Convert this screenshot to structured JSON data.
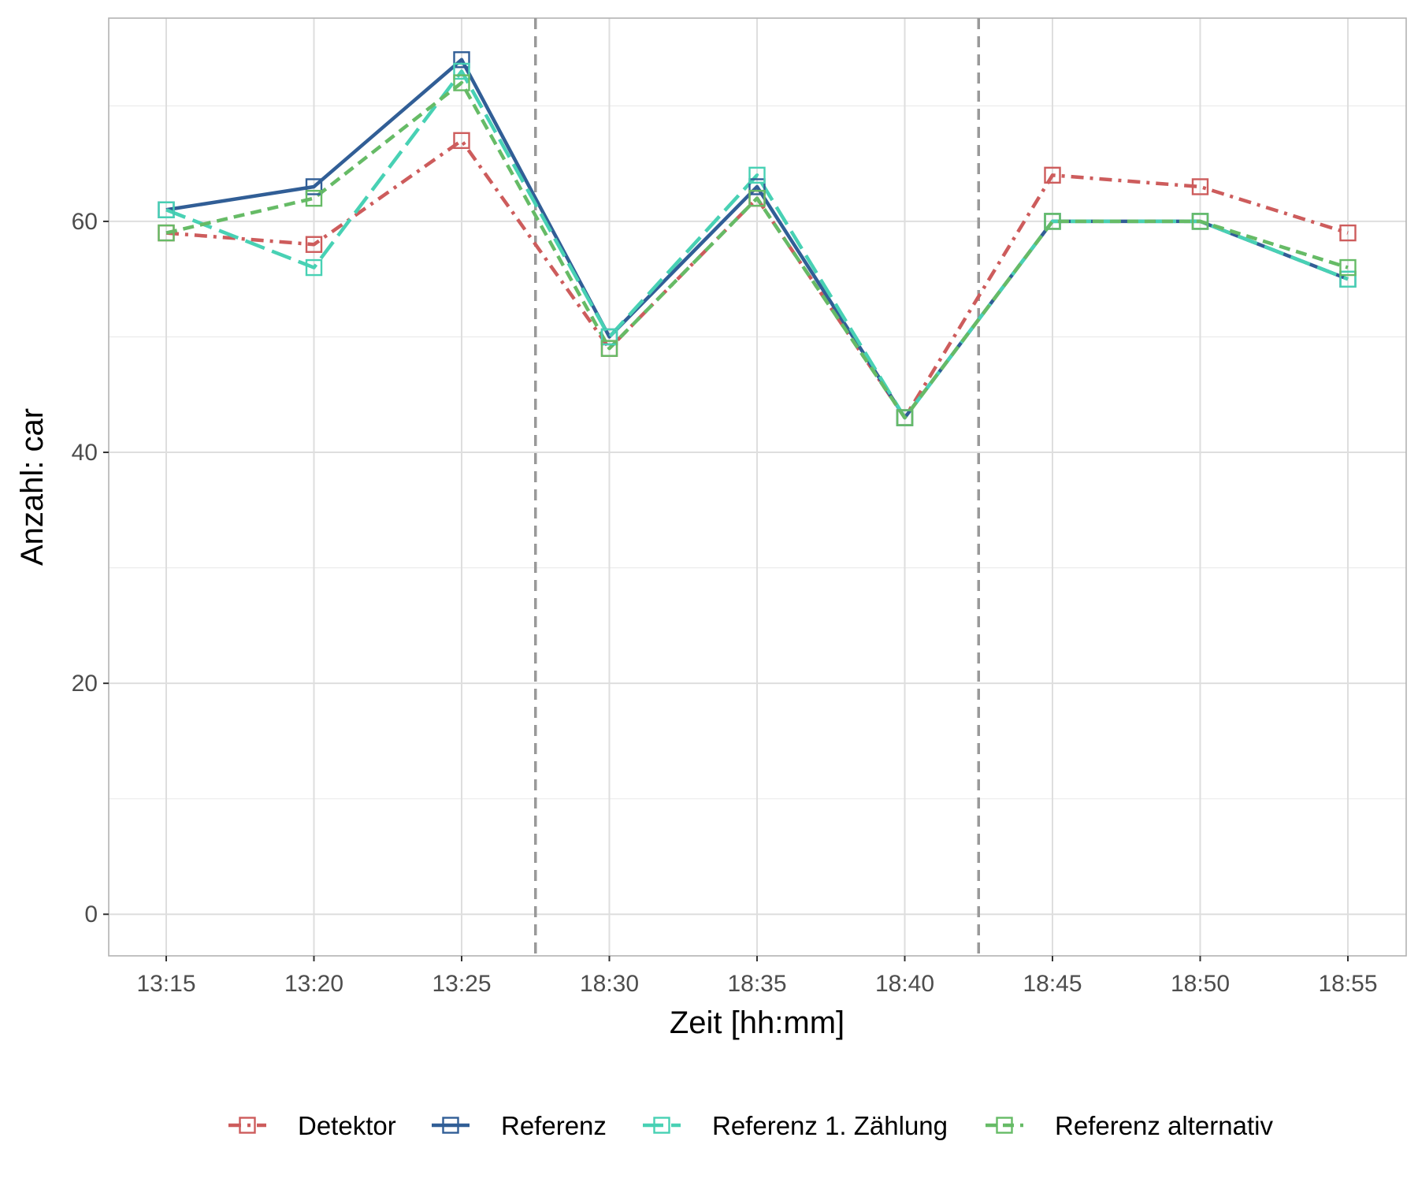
{
  "chart_data": {
    "type": "line",
    "title": "",
    "xlabel": "Zeit [hh:mm]",
    "ylabel": "Anzahl: car",
    "categories": [
      "13:15",
      "13:20",
      "13:25",
      "18:30",
      "18:35",
      "18:40",
      "18:45",
      "18:50",
      "18:55"
    ],
    "ylim": [
      -3.6,
      77.6
    ],
    "yticks": [
      0,
      20,
      40,
      60
    ],
    "grid": true,
    "legend_position": "bottom",
    "vlines": [
      2.5,
      5.5
    ],
    "vline_style": "dashed",
    "vline_color": "#999999",
    "series": [
      {
        "name": "Detektor",
        "color": "#CD5C5C",
        "dash": "dashdot",
        "values": [
          59,
          58,
          67,
          49,
          62,
          43,
          64,
          63,
          59
        ]
      },
      {
        "name": "Referenz",
        "color": "#315E96",
        "dash": "solid",
        "values": [
          61,
          63,
          74,
          50,
          63,
          43,
          60,
          60,
          55
        ]
      },
      {
        "name": "Referenz 1. Zählung",
        "color": "#48D1B4",
        "dash": "longdash",
        "values": [
          61,
          56,
          73,
          50,
          64,
          43,
          60,
          60,
          55
        ]
      },
      {
        "name": "Referenz alternativ",
        "color": "#66BB66",
        "dash": "dashed",
        "values": [
          59,
          62,
          72,
          49,
          62,
          43,
          60,
          60,
          56
        ]
      }
    ]
  }
}
